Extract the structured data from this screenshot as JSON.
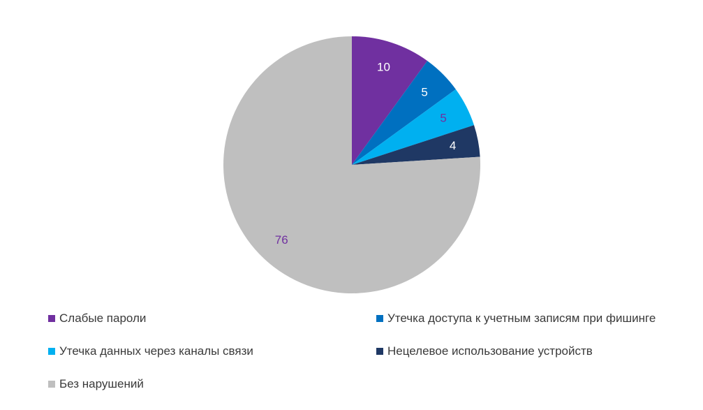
{
  "chart_data": {
    "type": "pie",
    "categories": [
      "Слабые пароли",
      "Утечка доступа к учетным записям при фишинге",
      "Утечка данных через каналы связи",
      "Нецелевое использование устройств",
      "Без нарушений"
    ],
    "values": [
      10,
      5,
      5,
      4,
      76
    ],
    "data_labels": [
      "10",
      "5",
      "5",
      "4",
      "76"
    ],
    "colors": [
      "#7030A0",
      "#0070C0",
      "#00B0F0",
      "#1F3864",
      "#BFBFBF"
    ],
    "label_colors": [
      "#ffffff",
      "#ffffff",
      "#7030A0",
      "#ffffff",
      "#7030A0"
    ],
    "legend_position": "bottom",
    "start_angle": "12 o'clock",
    "direction": "clockwise"
  }
}
